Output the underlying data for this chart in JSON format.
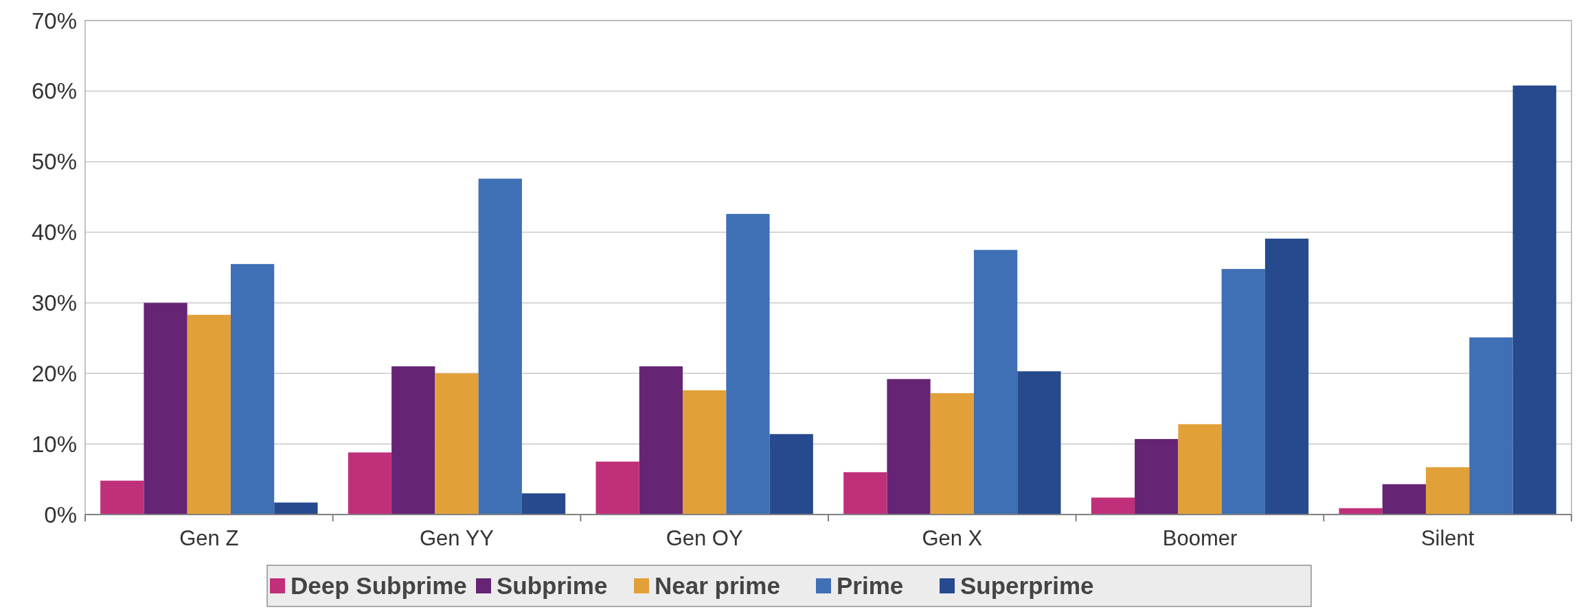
{
  "chart_data": {
    "type": "bar",
    "categories": [
      "Gen Z",
      "Gen YY",
      "Gen OY",
      "Gen X",
      "Boomer",
      "Silent"
    ],
    "series": [
      {
        "name": "Deep Subprime",
        "color": "#c0307a",
        "values": [
          4.8,
          8.8,
          7.5,
          6.0,
          2.4,
          0.9
        ]
      },
      {
        "name": "Subprime",
        "color": "#662475",
        "values": [
          30.0,
          21.0,
          21.0,
          19.2,
          10.7,
          4.3
        ]
      },
      {
        "name": "Near prime",
        "color": "#e2a038",
        "values": [
          28.3,
          20.0,
          17.6,
          17.2,
          12.8,
          6.7
        ]
      },
      {
        "name": "Prime",
        "color": "#3f70b5",
        "values": [
          35.5,
          47.6,
          42.6,
          37.5,
          34.8,
          25.1
        ]
      },
      {
        "name": "Superprime",
        "color": "#274a8f",
        "values": [
          1.7,
          3.0,
          11.4,
          20.3,
          39.1,
          60.8
        ]
      }
    ],
    "ylim": [
      0,
      70
    ],
    "yticks": [
      {
        "value": 0,
        "label": "0%"
      },
      {
        "value": 10,
        "label": "10%"
      },
      {
        "value": 20,
        "label": "20%"
      },
      {
        "value": 30,
        "label": "30%"
      },
      {
        "value": 40,
        "label": "40%"
      },
      {
        "value": 50,
        "label": "50%"
      },
      {
        "value": 60,
        "label": "60%"
      },
      {
        "value": 70,
        "label": "70%"
      }
    ],
    "grid": "y",
    "legend": "bottom"
  }
}
